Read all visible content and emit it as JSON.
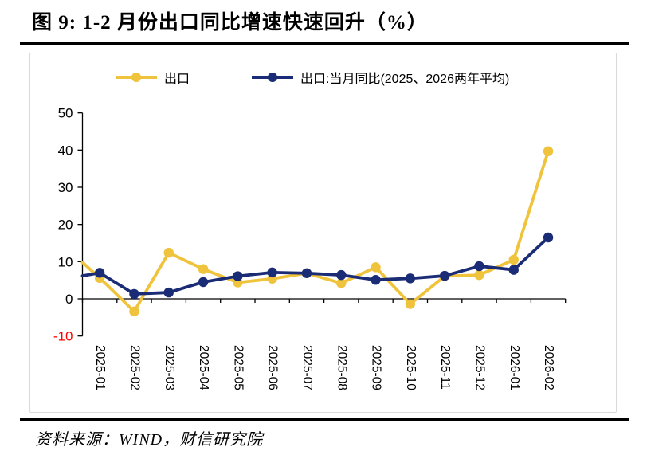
{
  "header": {
    "title": "图 9:  1-2 月份出口同比增速快速回升（%）"
  },
  "footer": {
    "source": "资料来源：WIND，财信研究院"
  },
  "chart_data": {
    "type": "line",
    "categories": [
      "2025-01",
      "2025-02",
      "2025-03",
      "2025-04",
      "2025-05",
      "2025-06",
      "2025-07",
      "2025-08",
      "2025-09",
      "2025-10",
      "2025-11",
      "2025-12",
      "2026-01",
      "2026-02"
    ],
    "series": [
      {
        "name": "出口",
        "color": "#F0C33C",
        "edge_value": 9.8,
        "values": [
          5.6,
          -3.4,
          12.4,
          8.0,
          4.4,
          5.4,
          6.9,
          4.2,
          8.5,
          -1.4,
          6.1,
          6.4,
          10.5,
          39.7
        ]
      },
      {
        "name": "出口:当月同比(2025、2026两年平均)",
        "color": "#1B2C76",
        "edge_value": 6.2,
        "values": [
          7.0,
          1.3,
          1.7,
          4.5,
          6.1,
          7.1,
          6.9,
          6.4,
          5.1,
          5.5,
          6.2,
          8.8,
          7.8,
          16.5
        ]
      }
    ],
    "y_ticks": [
      50,
      40,
      30,
      20,
      10,
      0,
      -10
    ],
    "ylim": [
      -10,
      50
    ],
    "grid": false,
    "legend_position": "top",
    "axis_color": "#000000",
    "tick_label_color": "#000000",
    "negative_tick_color": "#FF0000"
  }
}
